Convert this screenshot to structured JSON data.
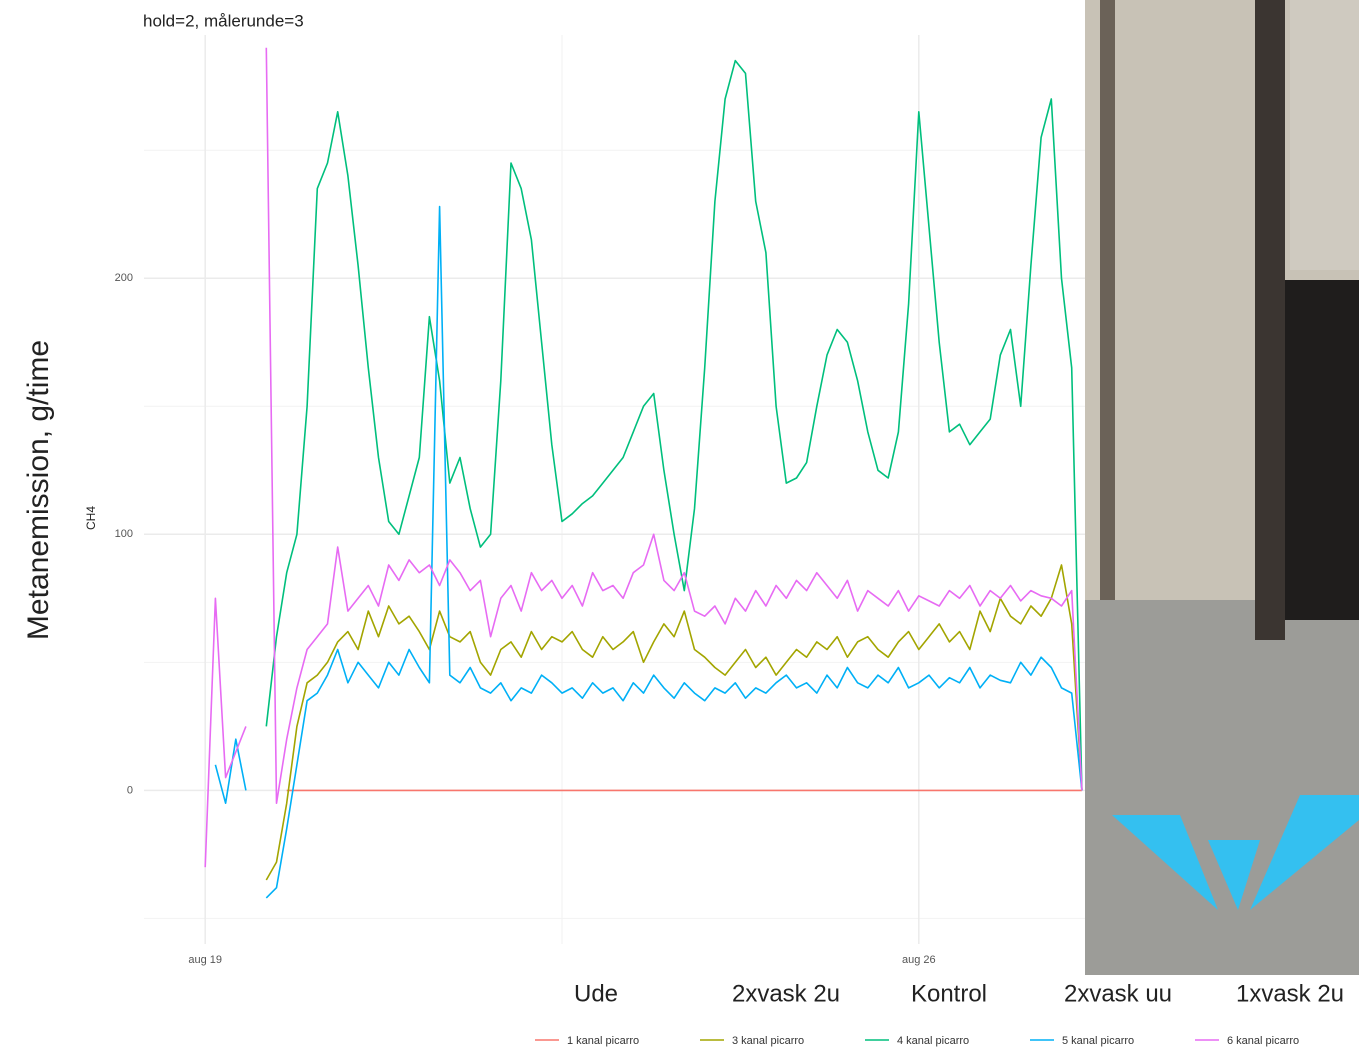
{
  "chart_data": {
    "type": "line",
    "subtitle": "hold=2, målerunde=3",
    "y_label": "CH4",
    "y_title": "Metanemission, g/time",
    "annotations": [
      "Ude",
      "2xvask 2u",
      "Kontrol",
      "2xvask uu",
      "1xvask 2u"
    ],
    "x": [
      0,
      0.1,
      0.2,
      0.3,
      0.4,
      0.5,
      0.6,
      0.7,
      0.8,
      0.9,
      1,
      1.1,
      1.2,
      1.3,
      1.4,
      1.5,
      1.6,
      1.7,
      1.8,
      1.9,
      2,
      2.1,
      2.2,
      2.3,
      2.4,
      2.5,
      2.6,
      2.7,
      2.8,
      2.9,
      3,
      3.1,
      3.2,
      3.3,
      3.4,
      3.5,
      3.6,
      3.7,
      3.8,
      3.9,
      4,
      4.1,
      4.2,
      4.3,
      4.4,
      4.5,
      4.6,
      4.7,
      4.8,
      4.9,
      5,
      5.1,
      5.2,
      5.3,
      5.4,
      5.5,
      5.6,
      5.7,
      5.8,
      5.9,
      6,
      6.1,
      6.2,
      6.3,
      6.4,
      6.5,
      6.6,
      6.7,
      6.8,
      6.9,
      7,
      7.1,
      7.2,
      7.3,
      7.4,
      7.5,
      7.6,
      7.7,
      7.8,
      7.9,
      8,
      8.1,
      8.2,
      8.3,
      8.4,
      8.5,
      8.6
    ],
    "xlim": [
      -0.6,
      8.65
    ],
    "xticks": [
      {
        "value": 0,
        "label": "aug 19"
      },
      {
        "value": 7,
        "label": "aug 26"
      }
    ],
    "minor_xticks": [
      3.5
    ],
    "ylim": [
      -60,
      295
    ],
    "yticks": [
      0,
      100,
      200
    ],
    "minor_yticks": [
      -50,
      50,
      150,
      250
    ],
    "grid": true,
    "legend": "bottom",
    "series": [
      {
        "name": "1 kanal picarro",
        "color": "#F8766D",
        "values": [
          null,
          null,
          null,
          null,
          null,
          null,
          null,
          null,
          0,
          0,
          0,
          0,
          0,
          0,
          0,
          0,
          0,
          0,
          0,
          0,
          0,
          0,
          0,
          0,
          0,
          0,
          0,
          0,
          0,
          0,
          0,
          0,
          0,
          0,
          0,
          0,
          0,
          0,
          0,
          0,
          0,
          0,
          0,
          0,
          0,
          0,
          0,
          0,
          0,
          0,
          0,
          0,
          0,
          0,
          0,
          0,
          0,
          0,
          0,
          0,
          0,
          0,
          0,
          0,
          0,
          0,
          0,
          0,
          0,
          0,
          0,
          0,
          0,
          0,
          0,
          0,
          0,
          0,
          0,
          0,
          0,
          0,
          0,
          0,
          0,
          0,
          0
        ]
      },
      {
        "name": "3 kanal picarro",
        "color": "#A3A500",
        "values": [
          null,
          null,
          null,
          null,
          null,
          null,
          -35,
          -28,
          -5,
          25,
          42,
          45,
          50,
          58,
          62,
          55,
          70,
          60,
          72,
          65,
          68,
          62,
          55,
          70,
          60,
          58,
          62,
          50,
          45,
          55,
          58,
          52,
          62,
          55,
          60,
          58,
          62,
          55,
          52,
          60,
          55,
          58,
          62,
          50,
          58,
          65,
          60,
          70,
          55,
          52,
          48,
          45,
          50,
          55,
          48,
          52,
          45,
          50,
          55,
          52,
          58,
          55,
          60,
          52,
          58,
          60,
          55,
          52,
          58,
          62,
          55,
          60,
          65,
          58,
          62,
          55,
          70,
          62,
          75,
          68,
          65,
          72,
          68,
          75,
          88,
          65,
          0
        ]
      },
      {
        "name": "4 kanal picarro",
        "color": "#00BF7D",
        "values": [
          null,
          null,
          null,
          null,
          null,
          null,
          25,
          60,
          85,
          100,
          150,
          235,
          245,
          265,
          240,
          205,
          165,
          130,
          105,
          100,
          115,
          130,
          185,
          160,
          120,
          130,
          110,
          95,
          100,
          160,
          245,
          235,
          215,
          175,
          135,
          105,
          108,
          112,
          115,
          120,
          125,
          130,
          140,
          150,
          155,
          125,
          100,
          78,
          110,
          165,
          230,
          270,
          285,
          280,
          230,
          210,
          150,
          120,
          122,
          128,
          150,
          170,
          180,
          175,
          160,
          140,
          125,
          122,
          140,
          190,
          265,
          220,
          175,
          140,
          143,
          135,
          140,
          145,
          170,
          180,
          150,
          205,
          255,
          270,
          200,
          165,
          0
        ]
      },
      {
        "name": "5 kanal picarro",
        "color": "#00B0F6",
        "values": [
          null,
          10,
          -5,
          20,
          0,
          null,
          -42,
          -38,
          -15,
          10,
          35,
          38,
          45,
          55,
          42,
          50,
          45,
          40,
          50,
          45,
          55,
          48,
          42,
          228,
          45,
          42,
          48,
          40,
          38,
          42,
          35,
          40,
          38,
          45,
          42,
          38,
          40,
          36,
          42,
          38,
          40,
          35,
          42,
          38,
          45,
          40,
          36,
          42,
          38,
          35,
          40,
          38,
          42,
          36,
          40,
          38,
          42,
          45,
          40,
          42,
          38,
          45,
          40,
          48,
          42,
          40,
          45,
          42,
          48,
          40,
          42,
          45,
          40,
          44,
          42,
          48,
          40,
          45,
          43,
          42,
          50,
          45,
          52,
          48,
          40,
          38,
          0
        ]
      },
      {
        "name": "6 kanal picarro",
        "color": "#E76BF3",
        "values": [
          -30,
          75,
          5,
          15,
          25,
          null,
          290,
          -5,
          20,
          40,
          55,
          60,
          65,
          95,
          70,
          75,
          80,
          72,
          88,
          82,
          90,
          85,
          88,
          80,
          90,
          85,
          78,
          82,
          60,
          75,
          80,
          70,
          85,
          78,
          82,
          75,
          80,
          72,
          85,
          78,
          80,
          75,
          85,
          88,
          100,
          82,
          78,
          85,
          70,
          68,
          72,
          65,
          75,
          70,
          78,
          72,
          80,
          75,
          82,
          78,
          85,
          80,
          75,
          82,
          70,
          78,
          75,
          72,
          78,
          70,
          76,
          74,
          72,
          78,
          75,
          80,
          72,
          78,
          75,
          80,
          74,
          78,
          76,
          75,
          72,
          78,
          0
        ]
      }
    ]
  }
}
